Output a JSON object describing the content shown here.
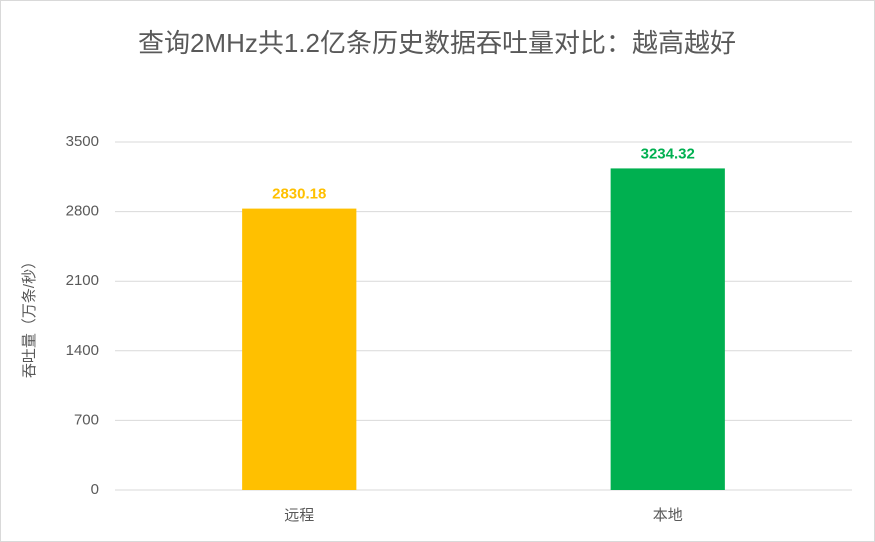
{
  "chart_data": {
    "type": "bar",
    "title": "查询2MHz共1.2亿条历史数据吞吐量对比：越高越好",
    "y_label": "吞吐量（万条/秒）",
    "categories": [
      "远程",
      "本地"
    ],
    "values": [
      2830.18,
      3234.32
    ],
    "colors": [
      "#ffc000",
      "#00b050"
    ],
    "ylim": [
      0,
      3500
    ],
    "yticks": [
      0,
      700,
      1400,
      2100,
      2800,
      3500
    ],
    "grid": true
  }
}
